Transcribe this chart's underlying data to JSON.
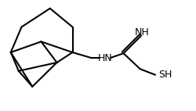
{
  "bg_color": "#ffffff",
  "line_color": "#000000",
  "line_width": 1.5,
  "font_size": 9,
  "label_hn": "HN",
  "label_nh": "NH",
  "label_sh": "SH"
}
